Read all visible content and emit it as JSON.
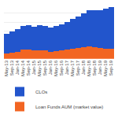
{
  "chart_data": {
    "type": "bar",
    "stacked": true,
    "categories": [
      "May-13",
      "Sep-13",
      "Jan-14",
      "May-14",
      "Sep-14",
      "Jan-15",
      "May-15",
      "Sep-15",
      "Jan-16",
      "May-16",
      "Sep-16",
      "Jan-17",
      "May-17",
      "Sep-17",
      "Jan-18",
      "May-18",
      "Sep-18",
      "Jan-19",
      "May-19",
      "Sep-19"
    ],
    "series": [
      {
        "name": "Loan Funds AUM (market value)",
        "color": "#f26522",
        "values": [
          55,
          65,
          75,
          100,
          105,
          90,
          95,
          95,
          75,
          80,
          90,
          100,
          110,
          115,
          125,
          140,
          130,
          120,
          110,
          110
        ]
      },
      {
        "name": "CLOs",
        "color": "#2255cc",
        "values": [
          220,
          235,
          248,
          258,
          260,
          265,
          272,
          268,
          268,
          280,
          290,
          305,
          325,
          345,
          368,
          390,
          405,
          415,
          435,
          455
        ]
      }
    ],
    "ylim": [
      0,
      600
    ],
    "yticks": [
      0,
      100,
      200,
      300,
      400,
      500,
      600
    ],
    "grid": true,
    "tick_labels": "x",
    "legend": "bottom"
  }
}
